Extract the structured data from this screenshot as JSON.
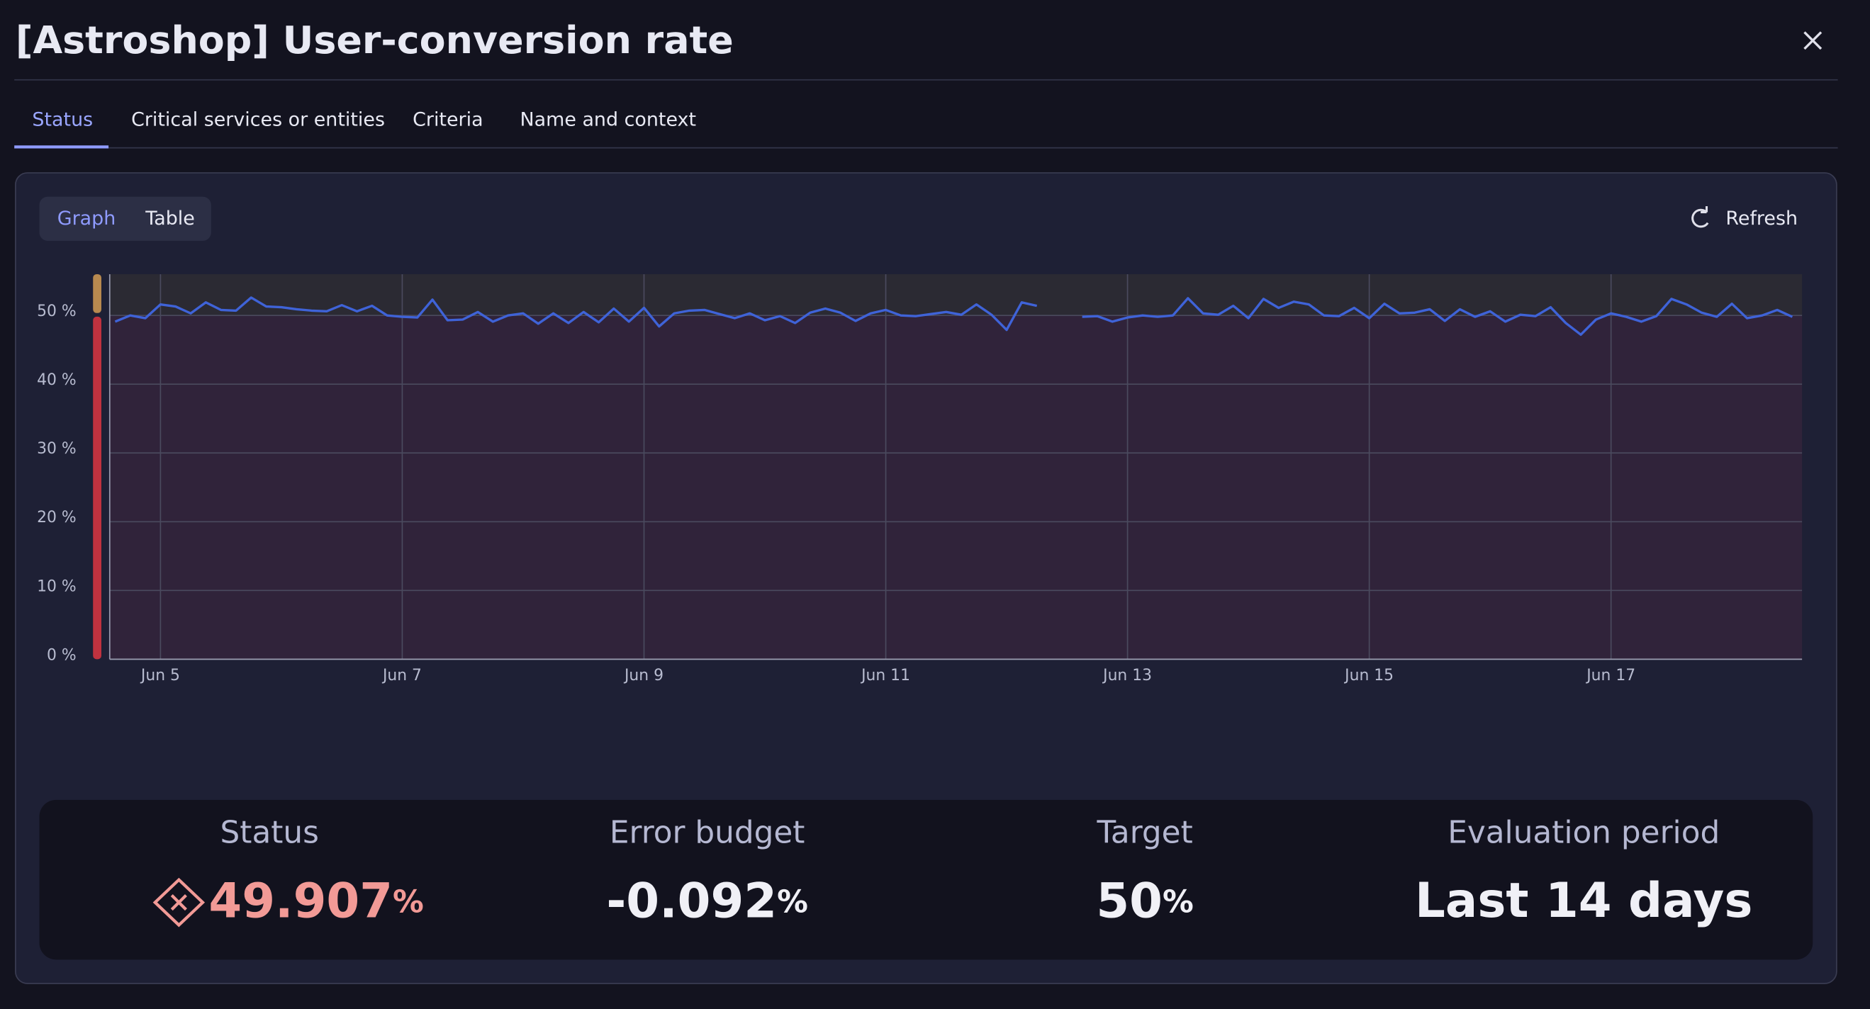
{
  "header": {
    "title": "[Astroshop] User-conversion rate"
  },
  "tabs": [
    "Status",
    "Critical services or entities",
    "Criteria",
    "Name and context"
  ],
  "view_toggle": [
    "Graph",
    "Table"
  ],
  "refresh": "Refresh",
  "chart_data": {
    "type": "line",
    "color": "#3f63d8",
    "target": 50,
    "grid": true,
    "ylim": [
      0,
      56
    ],
    "yticks": [
      {
        "value": 0,
        "label": "0 %"
      },
      {
        "value": 10,
        "label": "10 %"
      },
      {
        "value": 20,
        "label": "20 %"
      },
      {
        "value": 30,
        "label": "30 %"
      },
      {
        "value": 40,
        "label": "40 %"
      },
      {
        "value": 50,
        "label": "50 %"
      }
    ],
    "xlim": [
      4.58,
      18.58
    ],
    "xticks": [
      {
        "value": 5,
        "label": "Jun 5"
      },
      {
        "value": 7,
        "label": "Jun 7"
      },
      {
        "value": 9,
        "label": "Jun 9"
      },
      {
        "value": 11,
        "label": "Jun 11"
      },
      {
        "value": 13,
        "label": "Jun 13"
      },
      {
        "value": 15,
        "label": "Jun 15"
      },
      {
        "value": 17,
        "label": "Jun 17"
      }
    ],
    "x": [
      4.625,
      4.75,
      4.875,
      5,
      5.125,
      5.25,
      5.375,
      5.5,
      5.625,
      5.75,
      5.875,
      6,
      6.125,
      6.25,
      6.375,
      6.5,
      6.625,
      6.75,
      6.875,
      7,
      7.125,
      7.25,
      7.375,
      7.5,
      7.625,
      7.75,
      7.875,
      8,
      8.125,
      8.25,
      8.375,
      8.5,
      8.625,
      8.75,
      8.875,
      9,
      9.125,
      9.25,
      9.375,
      9.5,
      9.625,
      9.75,
      9.875,
      10,
      10.125,
      10.25,
      10.375,
      10.5,
      10.625,
      10.75,
      10.875,
      11,
      11.125,
      11.25,
      11.375,
      11.5,
      11.625,
      11.75,
      11.875,
      12,
      12.125,
      12.25,
      12.375,
      12.5,
      12.625,
      12.75,
      12.875,
      13,
      13.125,
      13.25,
      13.375,
      13.5,
      13.625,
      13.75,
      13.875,
      14,
      14.125,
      14.25,
      14.375,
      14.5,
      14.625,
      14.75,
      14.875,
      15,
      15.125,
      15.25,
      15.375,
      15.5,
      15.625,
      15.75,
      15.875,
      16,
      16.125,
      16.25,
      16.375,
      16.5,
      16.625,
      16.75,
      16.875,
      17,
      17.125,
      17.25,
      17.375,
      17.5,
      17.625,
      17.75,
      17.875,
      18,
      18.125,
      18.25,
      18.375,
      18.5
    ],
    "values": [
      49.1,
      50.0,
      49.6,
      51.6,
      51.3,
      50.3,
      51.9,
      50.8,
      50.7,
      52.6,
      51.3,
      51.2,
      50.9,
      50.7,
      50.6,
      51.5,
      50.6,
      51.4,
      50.0,
      49.8,
      49.7,
      52.3,
      49.3,
      49.4,
      50.5,
      49.1,
      50.0,
      50.3,
      48.8,
      50.3,
      48.9,
      50.5,
      49.0,
      51.0,
      49.1,
      51.1,
      48.4,
      50.3,
      50.7,
      50.8,
      50.2,
      49.6,
      50.3,
      49.3,
      49.9,
      48.9,
      50.4,
      51.0,
      50.4,
      49.2,
      50.3,
      50.8,
      50.0,
      49.9,
      50.2,
      50.5,
      50.1,
      51.6,
      50.1,
      47.9,
      51.9,
      51.4,
      null,
      null,
      49.8,
      49.9,
      49.1,
      49.7,
      50.0,
      49.8,
      50.0,
      52.5,
      50.3,
      50.1,
      51.4,
      49.6,
      52.4,
      51.1,
      52.0,
      51.6,
      50.0,
      49.9,
      51.1,
      49.6,
      51.7,
      50.3,
      50.4,
      50.9,
      49.2,
      50.9,
      49.8,
      50.6,
      49.1,
      50.1,
      49.9,
      51.2,
      48.9,
      47.2,
      49.4,
      50.3,
      49.8,
      49.1,
      49.9,
      52.4,
      51.6,
      50.4,
      49.8,
      51.7,
      49.6,
      50.0,
      50.8,
      49.8
    ]
  },
  "summary": {
    "status": {
      "label": "Status",
      "value": 49.907,
      "unit": "%"
    },
    "error_budget": {
      "label": "Error budget",
      "value": -0.092,
      "unit": "%"
    },
    "target": {
      "label": "Target",
      "value": 50,
      "unit": "%"
    },
    "evaluation_period": {
      "label": "Evaluation period",
      "value": "Last 14 days"
    }
  }
}
